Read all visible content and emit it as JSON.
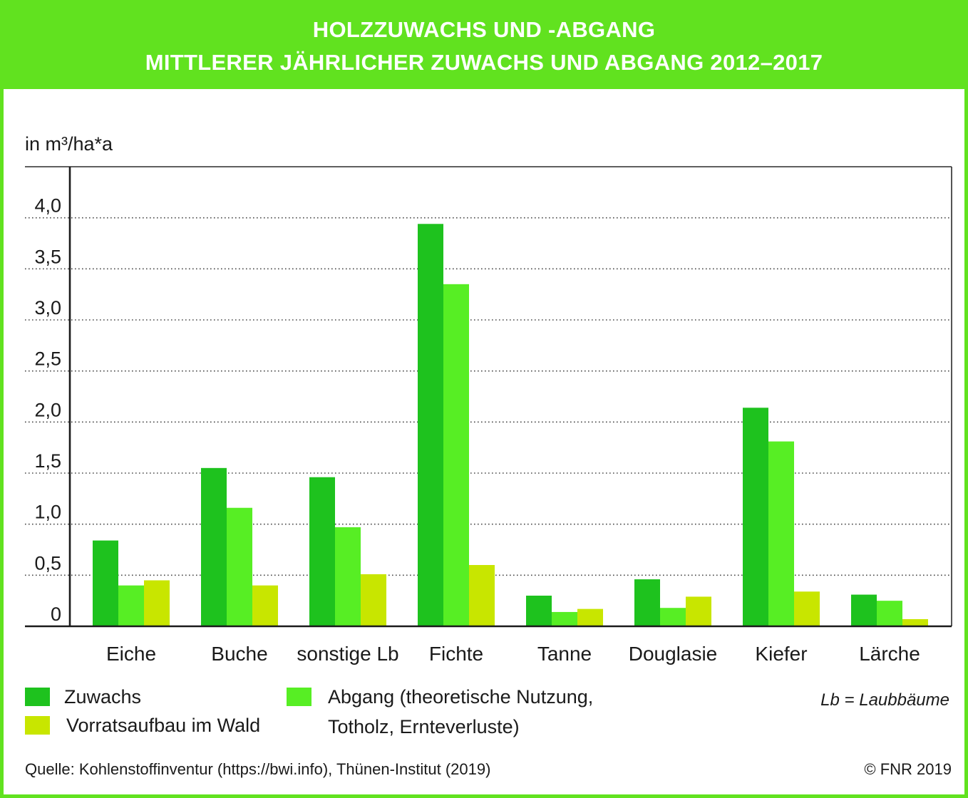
{
  "theme": {
    "frame_color": "#61e21f"
  },
  "chart_data": {
    "type": "bar",
    "title": "HOLZZUWACHS UND -ABGANG",
    "subtitle": "MITTLERER JÄHRLICHER ZUWACHS UND ABGANG 2012–2017",
    "ylabel": "in m³/ha*a",
    "ylim": [
      0,
      4.5
    ],
    "yticks": [
      0,
      0.5,
      1.0,
      1.5,
      2.0,
      2.5,
      3.0,
      3.5,
      4.0
    ],
    "ytick_labels": [
      "0",
      "0,5",
      "1,0",
      "1,5",
      "2,0",
      "2,5",
      "3,0",
      "3,5",
      "4,0"
    ],
    "grid": true,
    "categories": [
      "Eiche",
      "Buche",
      "sonstige Lb",
      "Fichte",
      "Tanne",
      "Douglasie",
      "Kiefer",
      "Lärche"
    ],
    "series": [
      {
        "name": "Zuwachs",
        "color": "#1ec21e",
        "values": [
          0.84,
          1.55,
          1.46,
          3.94,
          0.3,
          0.46,
          2.14,
          0.31
        ]
      },
      {
        "name": "Abgang (theoretische Nutzung, Totholz, Ernteverluste)",
        "color": "#57ee24",
        "values": [
          0.4,
          1.16,
          0.97,
          3.35,
          0.14,
          0.18,
          1.81,
          0.25
        ]
      },
      {
        "name": "Vorratsaufbau im Wald",
        "color": "#c8e600",
        "values": [
          0.45,
          0.4,
          0.51,
          0.6,
          0.17,
          0.29,
          0.34,
          0.07
        ]
      }
    ],
    "legend_position": "bottom",
    "note": "Lb = Laubbäume"
  },
  "footer": {
    "source": "Quelle: Kohlenstoffinventur (https://bwi.info), Thünen-Institut (2019)",
    "copyright": "© FNR 2019"
  }
}
